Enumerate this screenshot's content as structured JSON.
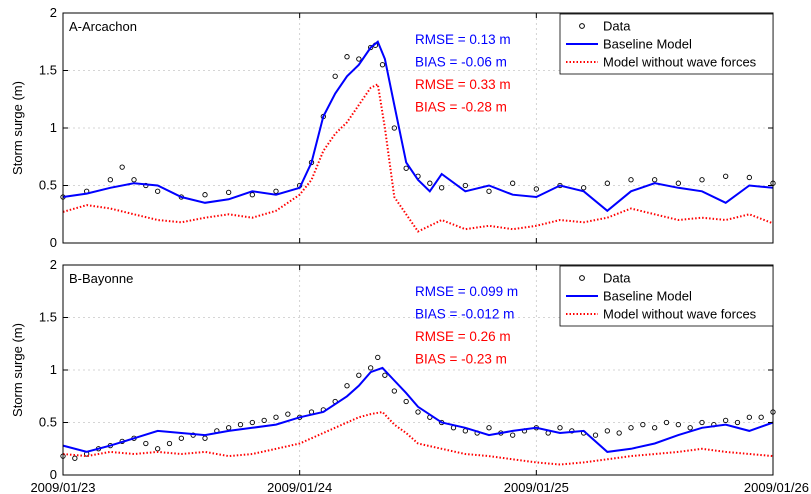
{
  "chart_data": [
    {
      "type": "line",
      "title": "A-Arcachon",
      "ylabel": "Storm surge (m)",
      "xlabel": "",
      "xlim": [
        "2009/01/23",
        "2009/01/26"
      ],
      "ylim": [
        0,
        2
      ],
      "yticks": [
        "0",
        "0.5",
        "1",
        "1.5",
        "2"
      ],
      "xticks": [
        "2009/01/23",
        "2009/01/24",
        "2009/01/25",
        "2009/01/26"
      ],
      "grid": true,
      "legend_position": "top-right",
      "annotations": [
        {
          "text": "RMSE = 0.13 m",
          "color": "#0000ff"
        },
        {
          "text": "BIAS = -0.06 m",
          "color": "#0000ff"
        },
        {
          "text": "RMSE = 0.33 m",
          "color": "#ff0000"
        },
        {
          "text": "BIAS = -0.28 m",
          "color": "#ff0000"
        }
      ],
      "series": [
        {
          "name": "Data",
          "style": "circles",
          "color": "#000000",
          "x": [
            0.0,
            0.1,
            0.2,
            0.25,
            0.3,
            0.35,
            0.4,
            0.5,
            0.6,
            0.7,
            0.8,
            0.9,
            1.0,
            1.05,
            1.1,
            1.15,
            1.2,
            1.25,
            1.3,
            1.32,
            1.35,
            1.4,
            1.45,
            1.5,
            1.55,
            1.6,
            1.7,
            1.8,
            1.9,
            2.0,
            2.1,
            2.2,
            2.3,
            2.4,
            2.5,
            2.6,
            2.7,
            2.8,
            2.9,
            3.0
          ],
          "y": [
            0.4,
            0.45,
            0.55,
            0.66,
            0.55,
            0.5,
            0.45,
            0.4,
            0.42,
            0.44,
            0.42,
            0.45,
            0.5,
            0.7,
            1.1,
            1.45,
            1.62,
            1.6,
            1.7,
            1.72,
            1.55,
            1.0,
            0.65,
            0.58,
            0.52,
            0.48,
            0.5,
            0.45,
            0.52,
            0.47,
            0.5,
            0.48,
            0.52,
            0.55,
            0.55,
            0.52,
            0.55,
            0.58,
            0.57,
            0.52
          ]
        },
        {
          "name": "Baseline Model",
          "style": "solid",
          "color": "#0000ff",
          "x": [
            0.0,
            0.1,
            0.2,
            0.3,
            0.4,
            0.5,
            0.6,
            0.7,
            0.8,
            0.9,
            1.0,
            1.05,
            1.1,
            1.15,
            1.2,
            1.25,
            1.3,
            1.33,
            1.36,
            1.4,
            1.45,
            1.5,
            1.55,
            1.6,
            1.7,
            1.8,
            1.9,
            2.0,
            2.1,
            2.2,
            2.3,
            2.4,
            2.5,
            2.6,
            2.7,
            2.8,
            2.9,
            3.0
          ],
          "y": [
            0.4,
            0.43,
            0.48,
            0.52,
            0.5,
            0.4,
            0.35,
            0.38,
            0.45,
            0.42,
            0.48,
            0.7,
            1.1,
            1.3,
            1.45,
            1.55,
            1.7,
            1.75,
            1.6,
            1.2,
            0.7,
            0.55,
            0.45,
            0.6,
            0.45,
            0.5,
            0.42,
            0.4,
            0.5,
            0.45,
            0.28,
            0.45,
            0.52,
            0.48,
            0.45,
            0.35,
            0.5,
            0.48
          ]
        },
        {
          "name": "Model without wave forces",
          "style": "dotted",
          "color": "#ff0000",
          "x": [
            0.0,
            0.1,
            0.2,
            0.3,
            0.4,
            0.5,
            0.6,
            0.7,
            0.8,
            0.9,
            1.0,
            1.05,
            1.1,
            1.15,
            1.2,
            1.25,
            1.3,
            1.33,
            1.36,
            1.4,
            1.45,
            1.5,
            1.55,
            1.6,
            1.7,
            1.8,
            1.9,
            2.0,
            2.1,
            2.2,
            2.3,
            2.4,
            2.5,
            2.6,
            2.7,
            2.8,
            2.9,
            3.0
          ],
          "y": [
            0.27,
            0.33,
            0.3,
            0.25,
            0.2,
            0.18,
            0.22,
            0.25,
            0.22,
            0.28,
            0.42,
            0.55,
            0.8,
            0.95,
            1.05,
            1.2,
            1.35,
            1.38,
            1.0,
            0.4,
            0.25,
            0.1,
            0.15,
            0.2,
            0.12,
            0.15,
            0.12,
            0.15,
            0.2,
            0.18,
            0.22,
            0.3,
            0.25,
            0.2,
            0.22,
            0.2,
            0.25,
            0.17
          ]
        }
      ]
    },
    {
      "type": "line",
      "title": "B-Bayonne",
      "ylabel": "Storm surge (m)",
      "xlabel": "",
      "xlim": [
        "2009/01/23",
        "2009/01/26"
      ],
      "ylim": [
        0,
        2
      ],
      "yticks": [
        "0",
        "0.5",
        "1",
        "1.5",
        "2"
      ],
      "xticks": [
        "2009/01/23",
        "2009/01/24",
        "2009/01/25",
        "2009/01/26"
      ],
      "grid": true,
      "legend_position": "top-right",
      "annotations": [
        {
          "text": "RMSE = 0.099 m",
          "color": "#0000ff"
        },
        {
          "text": "BIAS = -0.012 m",
          "color": "#0000ff"
        },
        {
          "text": "RMSE = 0.26 m",
          "color": "#ff0000"
        },
        {
          "text": "BIAS = -0.23 m",
          "color": "#ff0000"
        }
      ],
      "series": [
        {
          "name": "Data",
          "style": "circles",
          "color": "#000000",
          "x": [
            0.0,
            0.05,
            0.1,
            0.15,
            0.2,
            0.25,
            0.3,
            0.35,
            0.4,
            0.45,
            0.5,
            0.55,
            0.6,
            0.65,
            0.7,
            0.75,
            0.8,
            0.85,
            0.9,
            0.95,
            1.0,
            1.05,
            1.1,
            1.15,
            1.2,
            1.25,
            1.3,
            1.33,
            1.36,
            1.4,
            1.45,
            1.5,
            1.55,
            1.6,
            1.65,
            1.7,
            1.75,
            1.8,
            1.85,
            1.9,
            1.95,
            2.0,
            2.05,
            2.1,
            2.15,
            2.2,
            2.25,
            2.3,
            2.35,
            2.4,
            2.45,
            2.5,
            2.55,
            2.6,
            2.65,
            2.7,
            2.75,
            2.8,
            2.85,
            2.9,
            2.95,
            3.0
          ],
          "y": [
            0.18,
            0.16,
            0.2,
            0.25,
            0.28,
            0.32,
            0.35,
            0.3,
            0.25,
            0.3,
            0.35,
            0.38,
            0.35,
            0.42,
            0.45,
            0.48,
            0.5,
            0.52,
            0.55,
            0.58,
            0.55,
            0.6,
            0.62,
            0.7,
            0.85,
            0.95,
            1.02,
            1.12,
            0.95,
            0.8,
            0.7,
            0.6,
            0.55,
            0.5,
            0.45,
            0.42,
            0.4,
            0.45,
            0.4,
            0.38,
            0.42,
            0.45,
            0.4,
            0.45,
            0.42,
            0.4,
            0.38,
            0.42,
            0.4,
            0.45,
            0.48,
            0.45,
            0.5,
            0.48,
            0.45,
            0.5,
            0.48,
            0.52,
            0.5,
            0.55,
            0.55,
            0.6
          ]
        },
        {
          "name": "Baseline Model",
          "style": "solid",
          "color": "#0000ff",
          "x": [
            0.0,
            0.1,
            0.2,
            0.3,
            0.4,
            0.5,
            0.6,
            0.7,
            0.8,
            0.9,
            1.0,
            1.1,
            1.2,
            1.25,
            1.3,
            1.35,
            1.4,
            1.45,
            1.5,
            1.6,
            1.7,
            1.8,
            1.9,
            2.0,
            2.1,
            2.2,
            2.3,
            2.4,
            2.5,
            2.6,
            2.7,
            2.8,
            2.9,
            3.0
          ],
          "y": [
            0.28,
            0.22,
            0.28,
            0.35,
            0.42,
            0.4,
            0.38,
            0.42,
            0.45,
            0.48,
            0.55,
            0.6,
            0.75,
            0.85,
            0.98,
            1.02,
            0.9,
            0.78,
            0.65,
            0.5,
            0.45,
            0.38,
            0.42,
            0.45,
            0.4,
            0.42,
            0.22,
            0.25,
            0.3,
            0.38,
            0.45,
            0.48,
            0.42,
            0.5
          ]
        },
        {
          "name": "Model without wave forces",
          "style": "dotted",
          "color": "#ff0000",
          "x": [
            0.0,
            0.1,
            0.2,
            0.3,
            0.4,
            0.5,
            0.6,
            0.7,
            0.8,
            0.9,
            1.0,
            1.1,
            1.2,
            1.25,
            1.3,
            1.35,
            1.4,
            1.45,
            1.5,
            1.6,
            1.7,
            1.8,
            1.9,
            2.0,
            2.1,
            2.2,
            2.3,
            2.4,
            2.5,
            2.6,
            2.7,
            2.8,
            2.9,
            3.0
          ],
          "y": [
            0.2,
            0.18,
            0.22,
            0.2,
            0.22,
            0.2,
            0.22,
            0.18,
            0.2,
            0.25,
            0.3,
            0.4,
            0.5,
            0.55,
            0.58,
            0.6,
            0.48,
            0.4,
            0.3,
            0.25,
            0.2,
            0.18,
            0.15,
            0.12,
            0.1,
            0.12,
            0.15,
            0.18,
            0.2,
            0.22,
            0.25,
            0.22,
            0.2,
            0.18
          ]
        }
      ]
    }
  ]
}
